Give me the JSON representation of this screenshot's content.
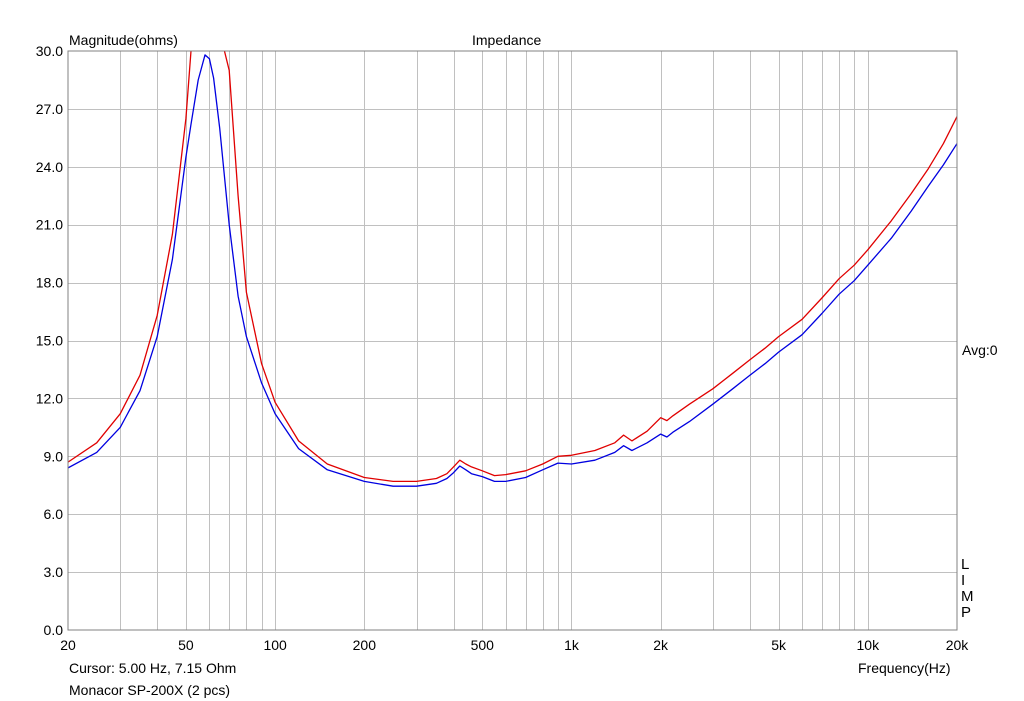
{
  "chart_data": {
    "type": "line",
    "title": "Impedance",
    "ylabel": "Magnitude(ohms)",
    "xlabel": "Frequency(Hz)",
    "x_scale": "log",
    "xlim": [
      20,
      20000
    ],
    "ylim": [
      0,
      30
    ],
    "grid": true,
    "y_ticks": [
      "0.0",
      "3.0",
      "6.0",
      "9.0",
      "12.0",
      "15.0",
      "18.0",
      "21.0",
      "24.0",
      "27.0",
      "30.0"
    ],
    "y_tick_values": [
      0,
      3,
      6,
      9,
      12,
      15,
      18,
      21,
      24,
      27,
      30
    ],
    "x_ticks": [
      "20",
      "50",
      "100",
      "200",
      "500",
      "1k",
      "2k",
      "5k",
      "10k",
      "20k"
    ],
    "x_tick_values": [
      20,
      50,
      100,
      200,
      500,
      1000,
      2000,
      5000,
      10000,
      20000
    ],
    "right_label": "Avg:0",
    "limp_letters": [
      "L",
      "I",
      "M",
      "P"
    ],
    "series": [
      {
        "color": "#e00000",
        "x": [
          20,
          25,
          30,
          35,
          40,
          45,
          50,
          52,
          55,
          60,
          65,
          70,
          75,
          80,
          90,
          100,
          120,
          150,
          200,
          250,
          300,
          350,
          380,
          400,
          420,
          440,
          460,
          500,
          550,
          600,
          700,
          800,
          900,
          1000,
          1200,
          1400,
          1500,
          1600,
          1800,
          2000,
          2100,
          2200,
          2500,
          3000,
          3500,
          4000,
          4500,
          5000,
          6000,
          7000,
          8000,
          9000,
          10000,
          12000,
          14000,
          16000,
          18000,
          20000
        ],
        "y": [
          8.7,
          9.7,
          11.2,
          13.2,
          16.3,
          20.5,
          26.5,
          30,
          31,
          32,
          31,
          29,
          22.5,
          17.5,
          13.8,
          11.8,
          9.8,
          8.6,
          7.9,
          7.7,
          7.7,
          7.85,
          8.1,
          8.45,
          8.8,
          8.6,
          8.45,
          8.25,
          8.0,
          8.05,
          8.25,
          8.6,
          9.0,
          9.05,
          9.3,
          9.7,
          10.1,
          9.8,
          10.3,
          11.0,
          10.85,
          11.1,
          11.7,
          12.5,
          13.3,
          14.0,
          14.6,
          15.2,
          16.1,
          17.2,
          18.2,
          18.9,
          19.7,
          21.2,
          22.6,
          23.9,
          25.2,
          26.6
        ]
      },
      {
        "color": "#0000e0",
        "x": [
          20,
          25,
          30,
          35,
          40,
          45,
          50,
          52,
          55,
          58,
          60,
          62,
          65,
          70,
          75,
          80,
          90,
          100,
          120,
          150,
          200,
          250,
          300,
          350,
          380,
          400,
          420,
          440,
          460,
          500,
          550,
          600,
          700,
          800,
          900,
          1000,
          1200,
          1400,
          1500,
          1600,
          1800,
          2000,
          2100,
          2200,
          2500,
          3000,
          3500,
          4000,
          4500,
          5000,
          6000,
          7000,
          8000,
          9000,
          10000,
          12000,
          14000,
          16000,
          18000,
          20000
        ],
        "y": [
          8.4,
          9.2,
          10.5,
          12.4,
          15.2,
          19.2,
          24.5,
          26.2,
          28.5,
          29.8,
          29.6,
          28.6,
          26,
          21,
          17.3,
          15.2,
          12.8,
          11.2,
          9.4,
          8.3,
          7.7,
          7.45,
          7.45,
          7.6,
          7.85,
          8.15,
          8.5,
          8.3,
          8.1,
          7.95,
          7.7,
          7.7,
          7.9,
          8.3,
          8.65,
          8.6,
          8.8,
          9.2,
          9.55,
          9.3,
          9.7,
          10.15,
          10.0,
          10.25,
          10.8,
          11.7,
          12.5,
          13.2,
          13.8,
          14.4,
          15.3,
          16.4,
          17.4,
          18.1,
          18.9,
          20.3,
          21.7,
          23.0,
          24.1,
          25.2
        ]
      }
    ]
  },
  "footer": {
    "cursor": "Cursor: 5.00 Hz, 7.15 Ohm",
    "device": "Monacor SP-200X (2 pcs)"
  }
}
